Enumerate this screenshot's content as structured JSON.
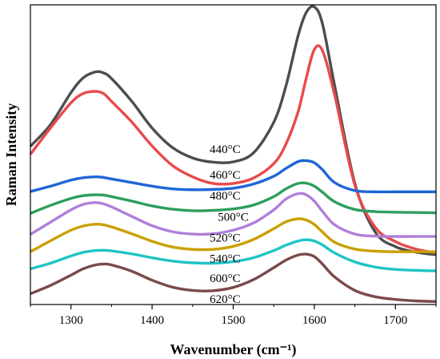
{
  "chart_data": {
    "type": "line",
    "xlabel": "Wavenumber (cm⁻¹)",
    "ylabel": "Raman Intensity",
    "xlim": [
      1250,
      1750
    ],
    "xticks": [
      "1300",
      "1400",
      "1500",
      "1600",
      "1700"
    ],
    "ylim": [
      0,
      100
    ],
    "grid": false,
    "legend": "none",
    "x": [
      1250,
      1275,
      1300,
      1315,
      1330,
      1340,
      1350,
      1375,
      1400,
      1425,
      1450,
      1475,
      1500,
      1525,
      1550,
      1565,
      1580,
      1590,
      1600,
      1610,
      1625,
      1650,
      1675,
      1700,
      1725,
      1750
    ],
    "series": [
      {
        "name": "440°C",
        "color": "#4d4d4d",
        "values": [
          52.8,
          60.1,
          70.7,
          75.6,
          77.6,
          77.3,
          75.4,
          67.8,
          58.9,
          52.4,
          48.9,
          47.5,
          47.6,
          50.6,
          60.8,
          72.9,
          89.7,
          97.4,
          99.3,
          93.7,
          73.1,
          40.4,
          24.2,
          19.3,
          17.5,
          16.6
        ]
      },
      {
        "name": "460°C",
        "color": "#e84a4a",
        "values": [
          50.1,
          59.0,
          67.3,
          70.4,
          71.1,
          70.4,
          67.8,
          60.9,
          52.9,
          46.4,
          42.6,
          40.4,
          40.4,
          42.2,
          47.0,
          53.5,
          64.3,
          75.5,
          85.1,
          84.7,
          70.0,
          39.8,
          25.8,
          21.0,
          18.5,
          17.2
        ]
      },
      {
        "name": "480°C",
        "color": "#1f66d6",
        "values": [
          37.7,
          39.5,
          41.5,
          42.3,
          42.6,
          42.4,
          41.9,
          40.7,
          39.5,
          38.6,
          38.3,
          38.4,
          38.8,
          40.2,
          42.8,
          45.4,
          47.7,
          48.0,
          47.3,
          45.0,
          40.7,
          38.0,
          37.6,
          37.6,
          37.6,
          37.6
        ]
      },
      {
        "name": "500°C",
        "color": "#2e9e5e",
        "values": [
          30.4,
          33.1,
          35.4,
          36.3,
          36.6,
          36.5,
          36.0,
          34.5,
          32.9,
          31.8,
          31.3,
          31.4,
          31.9,
          33.2,
          36.0,
          38.6,
          40.4,
          40.5,
          39.5,
          37.5,
          34.3,
          31.7,
          31.0,
          30.8,
          30.7,
          30.6
        ]
      },
      {
        "name": "520°C",
        "color": "#b07fd9",
        "values": [
          23.4,
          27.5,
          31.6,
          33.4,
          34.0,
          33.6,
          32.6,
          29.4,
          26.3,
          24.3,
          23.5,
          23.6,
          24.8,
          27.2,
          31.6,
          35.2,
          37.0,
          36.6,
          34.5,
          31.1,
          26.6,
          23.5,
          22.8,
          22.7,
          22.7,
          22.7
        ]
      },
      {
        "name": "540°C",
        "color": "#c9a000",
        "values": [
          17.6,
          21.3,
          24.8,
          26.2,
          26.8,
          26.6,
          25.9,
          23.6,
          21.1,
          19.2,
          18.4,
          18.4,
          19.4,
          21.7,
          25.3,
          27.6,
          28.6,
          28.2,
          26.7,
          24.2,
          20.8,
          18.5,
          17.8,
          17.6,
          17.6,
          17.6
        ]
      },
      {
        "name": "600°C",
        "color": "#1fc4c4",
        "values": [
          11.9,
          13.8,
          16.2,
          17.4,
          18.0,
          18.1,
          17.9,
          16.9,
          15.6,
          14.5,
          13.9,
          13.8,
          14.3,
          15.6,
          18.0,
          19.8,
          21.2,
          21.6,
          21.2,
          19.9,
          17.2,
          14.2,
          12.5,
          11.7,
          11.4,
          11.2
        ]
      },
      {
        "name": "620°C",
        "color": "#7a4a4a",
        "values": [
          3.6,
          6.4,
          9.8,
          11.9,
          13.2,
          13.5,
          13.2,
          11.1,
          8.1,
          5.8,
          4.7,
          4.6,
          5.7,
          8.3,
          12.3,
          14.8,
          16.5,
          16.8,
          16.0,
          13.5,
          9.2,
          4.7,
          2.6,
          1.7,
          1.2,
          1.0
        ]
      }
    ],
    "labels": [
      "440°C",
      "460°C",
      "480°C",
      "500°C",
      "520°C",
      "540°C",
      "600°C",
      "620°C"
    ],
    "label_x": [
      1490,
      1490,
      1490,
      1500,
      1490,
      1490,
      1490,
      1490
    ],
    "label_y": [
      50.5,
      42.0,
      35.0,
      28.0,
      21.0,
      14.0,
      7.5,
      0.6
    ]
  }
}
